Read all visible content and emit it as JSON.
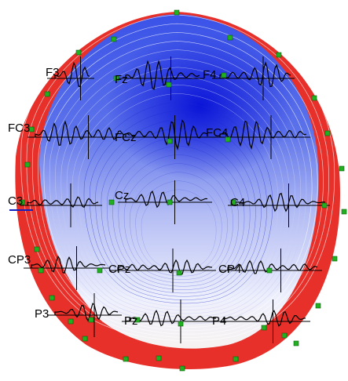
{
  "electrodes": [
    "F3",
    "Fz",
    "F4",
    "FC3",
    "FCz",
    "FC4",
    "C3",
    "Cz",
    "C4",
    "CP3",
    "CPz",
    "CP4",
    "P3",
    "Pz",
    "P4"
  ]
}
